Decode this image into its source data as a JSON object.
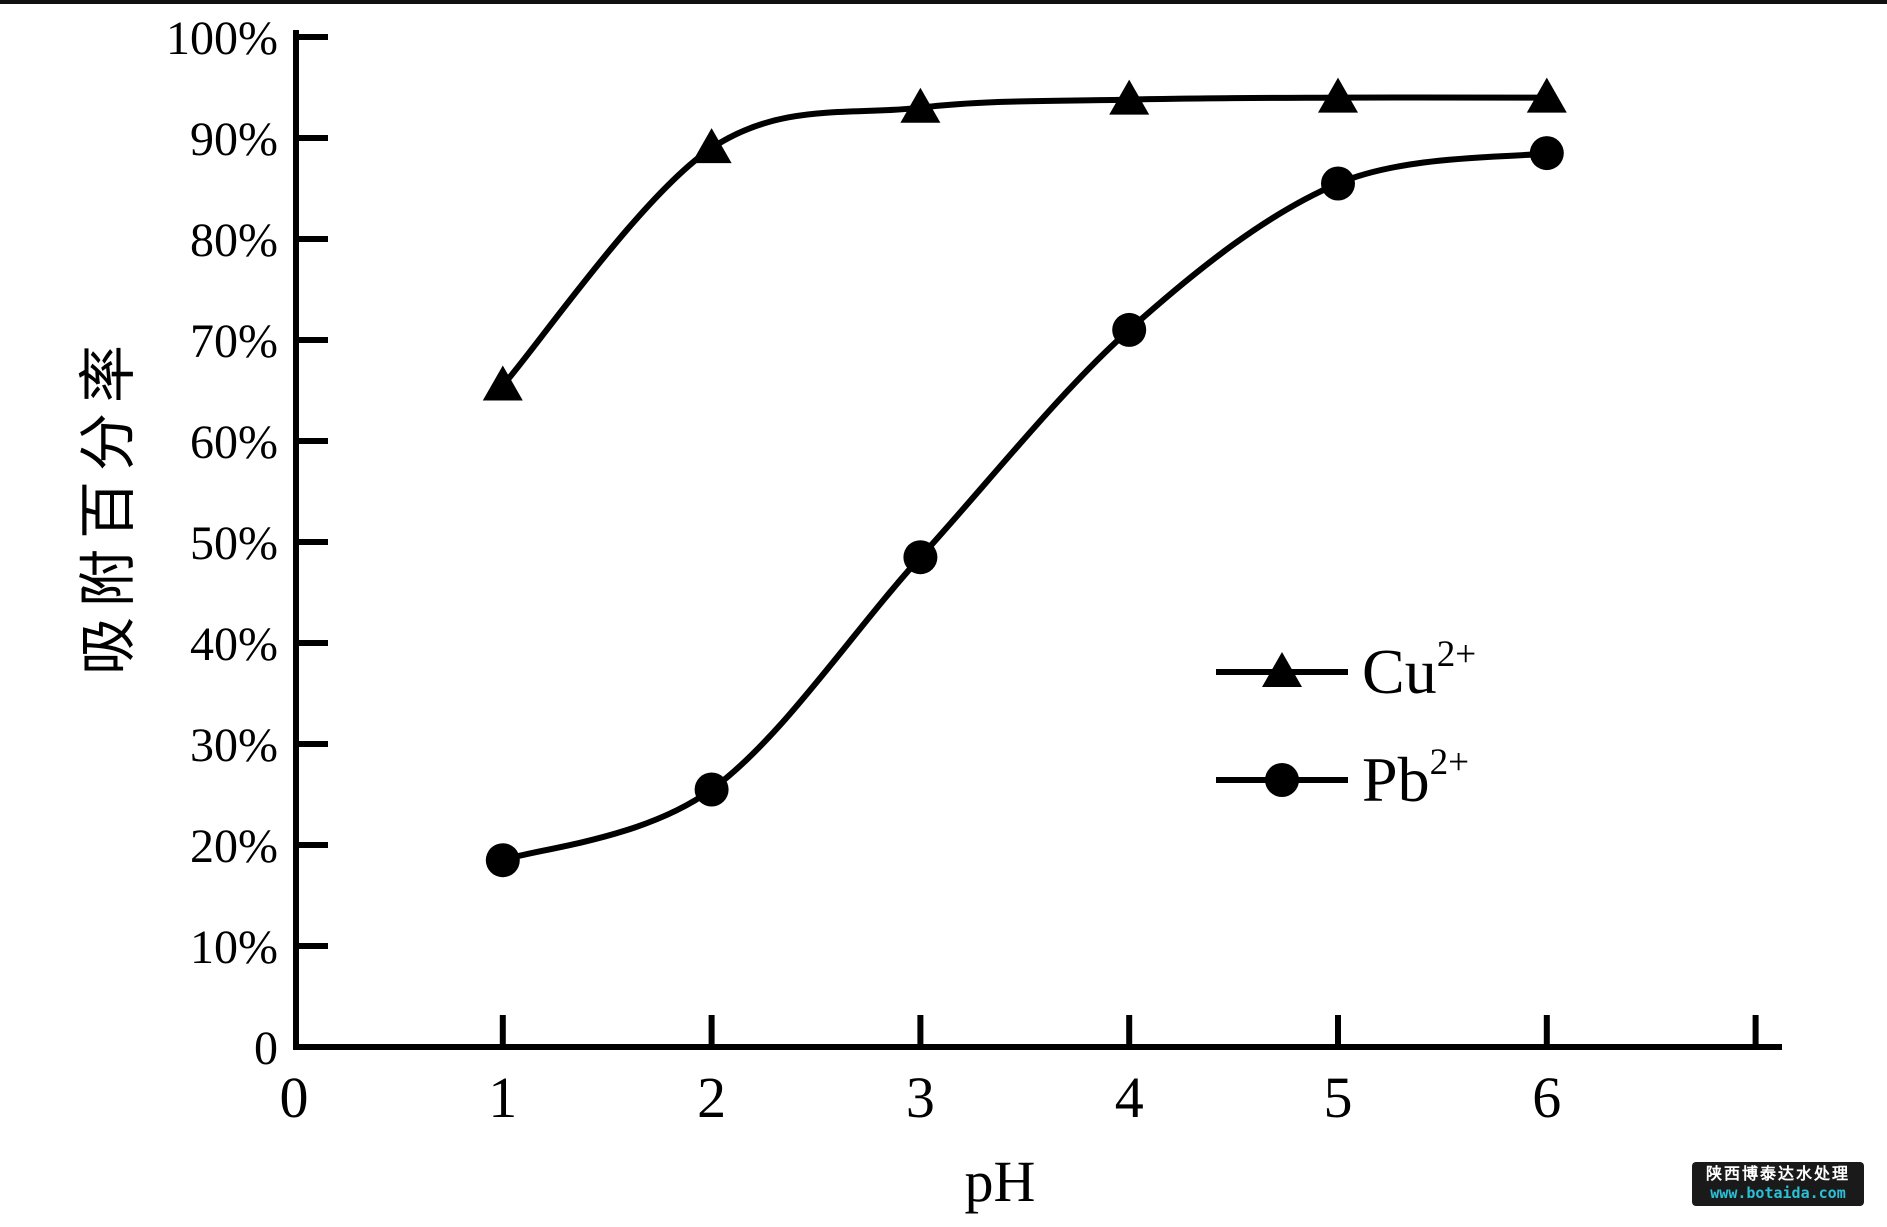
{
  "chart_data": {
    "type": "line",
    "title": "",
    "xlabel": "pH",
    "ylabel": "吸附百分率",
    "x": [
      1,
      2,
      3,
      4,
      5,
      6
    ],
    "series": [
      {
        "name": "Cu2+",
        "marker": "triangle",
        "color": "#000000",
        "values": [
          65.5,
          89,
          93,
          93.8,
          94,
          94
        ]
      },
      {
        "name": "Pb2+",
        "marker": "circle",
        "color": "#000000",
        "values": [
          18.5,
          25.5,
          48.5,
          71,
          85.5,
          88.5
        ]
      }
    ],
    "xlim": [
      0,
      7.15
    ],
    "ylim": [
      0,
      100
    ],
    "x_ticks": [
      1,
      2,
      3,
      4,
      5,
      6,
      7
    ],
    "x_tick_labels": [
      {
        "x": 0,
        "t": "0"
      },
      {
        "x": 1,
        "t": "1"
      },
      {
        "x": 2,
        "t": "2"
      },
      {
        "x": 3,
        "t": "3"
      },
      {
        "x": 4,
        "t": "4"
      },
      {
        "x": 5,
        "t": "5"
      },
      {
        "x": 6,
        "t": "6"
      }
    ],
    "y_ticks": [
      0,
      10,
      20,
      30,
      40,
      50,
      60,
      70,
      80,
      90,
      100
    ],
    "y_tick_labels": [
      "0",
      "10%",
      "20%",
      "30%",
      "40%",
      "50%",
      "60%",
      "70%",
      "80%",
      "90%",
      "100%"
    ],
    "grid": false,
    "legend_position": "inside-right-middle",
    "axis_color": "#000000"
  },
  "legend": {
    "items": [
      {
        "base": "Cu",
        "sup": "2+",
        "marker": "triangle"
      },
      {
        "base": "Pb",
        "sup": "2+",
        "marker": "circle"
      }
    ]
  },
  "watermark": {
    "line1": "陕西博泰达水处理",
    "line2": "www.botaida.com",
    "bg_color": "#1a1a1a",
    "line1_color": "#ffffff",
    "line2_color": "#2bc0d8"
  }
}
